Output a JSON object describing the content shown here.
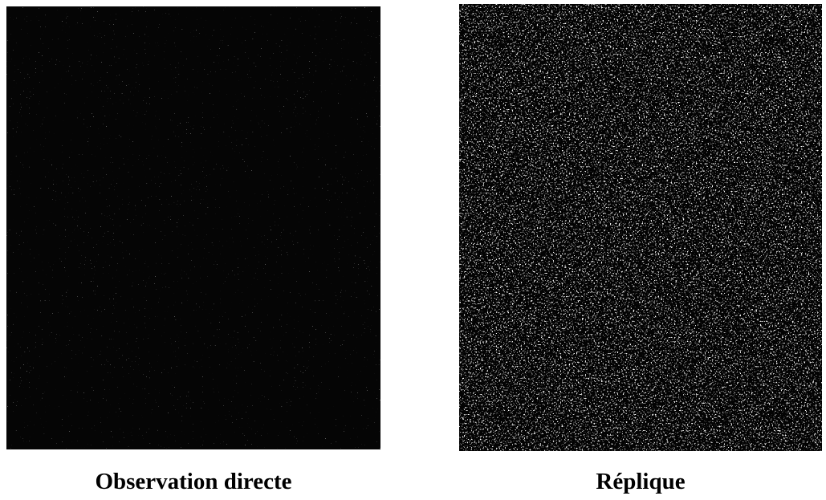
{
  "figure": {
    "panels": [
      {
        "caption": "Observation directe"
      },
      {
        "caption": "Réplique"
      }
    ]
  }
}
